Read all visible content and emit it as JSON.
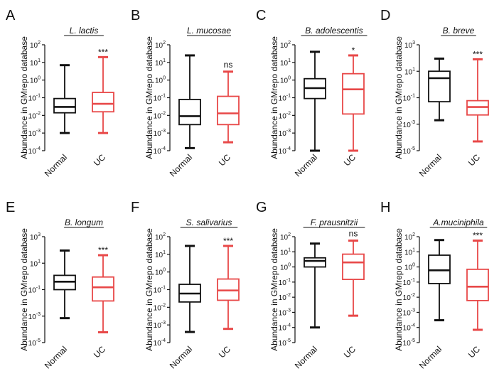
{
  "colors": {
    "Normal": "#111111",
    "UC": "#e84848",
    "axis": "#111111"
  },
  "chart_data": [
    {
      "panel": "A",
      "title": "L. lactis",
      "type": "box",
      "ylabel": "Abundance in GMrepo database",
      "yscale": "log",
      "ylim_exp": [
        -4,
        2
      ],
      "ticks_exp": [
        -4,
        -3,
        -2,
        -1,
        0,
        1,
        2
      ],
      "tick_labels": [
        "10-4",
        "10-3",
        "10-2",
        "10-1",
        "100",
        "101",
        "102"
      ],
      "categories": [
        "Normal",
        "UC"
      ],
      "boxes": [
        {
          "group": "Normal",
          "min": 0.001,
          "q1": 0.014,
          "median": 0.03,
          "q3": 0.09,
          "max": 7
        },
        {
          "group": "UC",
          "min": 0.001,
          "q1": 0.016,
          "median": 0.045,
          "q3": 0.2,
          "max": 20
        }
      ],
      "significance": "***"
    },
    {
      "panel": "B",
      "title": "L. mucosae",
      "type": "box",
      "ylabel": "Abundance in GMrepo database",
      "yscale": "log",
      "ylim_exp": [
        -4,
        2
      ],
      "ticks_exp": [
        -4,
        -3,
        -2,
        -1,
        0,
        1,
        2
      ],
      "tick_labels": [
        "10-4",
        "10-3",
        "10-2",
        "10-1",
        "100",
        "101",
        "102"
      ],
      "categories": [
        "Normal",
        "UC"
      ],
      "boxes": [
        {
          "group": "Normal",
          "min": 0.00014,
          "q1": 0.003,
          "median": 0.009,
          "q3": 0.08,
          "max": 25
        },
        {
          "group": "UC",
          "min": 0.0003,
          "q1": 0.003,
          "median": 0.013,
          "q3": 0.12,
          "max": 3
        }
      ],
      "significance": "ns"
    },
    {
      "panel": "C",
      "title": "B. adolescentis",
      "type": "box",
      "ylabel": "Abundance in GMrepo database",
      "yscale": "log",
      "ylim_exp": [
        -4,
        2
      ],
      "ticks_exp": [
        -4,
        -3,
        -2,
        -1,
        0,
        1,
        2
      ],
      "tick_labels": [
        "10-4",
        "10-3",
        "10-2",
        "10-1",
        "100",
        "101",
        "102"
      ],
      "categories": [
        "Normal",
        "UC"
      ],
      "boxes": [
        {
          "group": "Normal",
          "min": 0.0001,
          "q1": 0.09,
          "median": 0.35,
          "q3": 1.2,
          "max": 40
        },
        {
          "group": "UC",
          "min": 0.0001,
          "q1": 0.012,
          "median": 0.3,
          "q3": 2.3,
          "max": 25
        }
      ],
      "significance": "*"
    },
    {
      "panel": "D",
      "title": "B. breve",
      "type": "box",
      "ylabel": "Abundance in GMrepo database",
      "yscale": "log",
      "ylim_exp": [
        -5,
        3
      ],
      "ticks_exp": [
        -5,
        -3,
        -1,
        1,
        3
      ],
      "tick_labels": [
        "10-5",
        "10-3",
        "10-1",
        "101",
        "103"
      ],
      "categories": [
        "Normal",
        "UC"
      ],
      "boxes": [
        {
          "group": "Normal",
          "min": 0.002,
          "q1": 0.05,
          "median": 3,
          "q3": 10,
          "max": 90
        },
        {
          "group": "UC",
          "min": 5e-05,
          "q1": 0.005,
          "median": 0.02,
          "q3": 0.06,
          "max": 80
        }
      ],
      "significance": "***"
    },
    {
      "panel": "E",
      "title": "B. longum",
      "type": "box",
      "ylabel": "Abundance in GMrepo database",
      "yscale": "log",
      "ylim_exp": [
        -5,
        3
      ],
      "ticks_exp": [
        -5,
        -3,
        -1,
        1,
        3
      ],
      "tick_labels": [
        "10-5",
        "10-3",
        "10-1",
        "101",
        "103"
      ],
      "categories": [
        "Normal",
        "UC"
      ],
      "boxes": [
        {
          "group": "Normal",
          "min": 0.0007,
          "q1": 0.1,
          "median": 0.4,
          "q3": 1.2,
          "max": 90
        },
        {
          "group": "UC",
          "min": 6e-05,
          "q1": 0.014,
          "median": 0.15,
          "q3": 0.9,
          "max": 40
        }
      ],
      "significance": "***"
    },
    {
      "panel": "F",
      "title": "S. salivarius",
      "type": "box",
      "ylabel": "Abundance in GMrepo database",
      "yscale": "log",
      "ylim_exp": [
        -4,
        2
      ],
      "ticks_exp": [
        -4,
        -3,
        -2,
        -1,
        0,
        1,
        2
      ],
      "tick_labels": [
        "10-4",
        "10-3",
        "10-2",
        "10-1",
        "100",
        "101",
        "102"
      ],
      "categories": [
        "Normal",
        "UC"
      ],
      "boxes": [
        {
          "group": "Normal",
          "min": 0.0004,
          "q1": 0.02,
          "median": 0.06,
          "q3": 0.2,
          "max": 30
        },
        {
          "group": "UC",
          "min": 0.0006,
          "q1": 0.025,
          "median": 0.09,
          "q3": 0.4,
          "max": 30
        }
      ],
      "significance": "***"
    },
    {
      "panel": "G",
      "title": "F. prausnitzii",
      "type": "box",
      "ylabel": "Abundance in GMrepo database",
      "yscale": "log",
      "ylim_exp": [
        -5,
        2
      ],
      "ticks_exp": [
        -5,
        -4,
        -3,
        -2,
        -1,
        0,
        1,
        2
      ],
      "tick_labels": [
        "10-5",
        "10-4",
        "10-3",
        "10-2",
        "10-1",
        "100",
        "101",
        "102"
      ],
      "categories": [
        "Normal",
        "UC"
      ],
      "boxes": [
        {
          "group": "Normal",
          "min": 0.0001,
          "q1": 1,
          "median": 2.5,
          "q3": 4,
          "max": 35
        },
        {
          "group": "UC",
          "min": 0.0006,
          "q1": 0.15,
          "median": 2,
          "q3": 7,
          "max": 55
        }
      ],
      "significance": "ns"
    },
    {
      "panel": "H",
      "title": "A.muciniphila",
      "type": "box",
      "ylabel": "Abundance in GMrepo database",
      "yscale": "log",
      "ylim_exp": [
        -5,
        2
      ],
      "ticks_exp": [
        -5,
        -4,
        -3,
        -2,
        -1,
        0,
        1,
        2
      ],
      "tick_labels": [
        "10-5",
        "10-4",
        "10-3",
        "10-2",
        "10-1",
        "100",
        "101",
        "102"
      ],
      "categories": [
        "Normal",
        "UC"
      ],
      "boxes": [
        {
          "group": "Normal",
          "min": 0.0003,
          "q1": 0.08,
          "median": 0.6,
          "q3": 6,
          "max": 60
        },
        {
          "group": "UC",
          "min": 7e-05,
          "q1": 0.006,
          "median": 0.05,
          "q3": 0.7,
          "max": 55
        }
      ],
      "significance": "***"
    }
  ]
}
